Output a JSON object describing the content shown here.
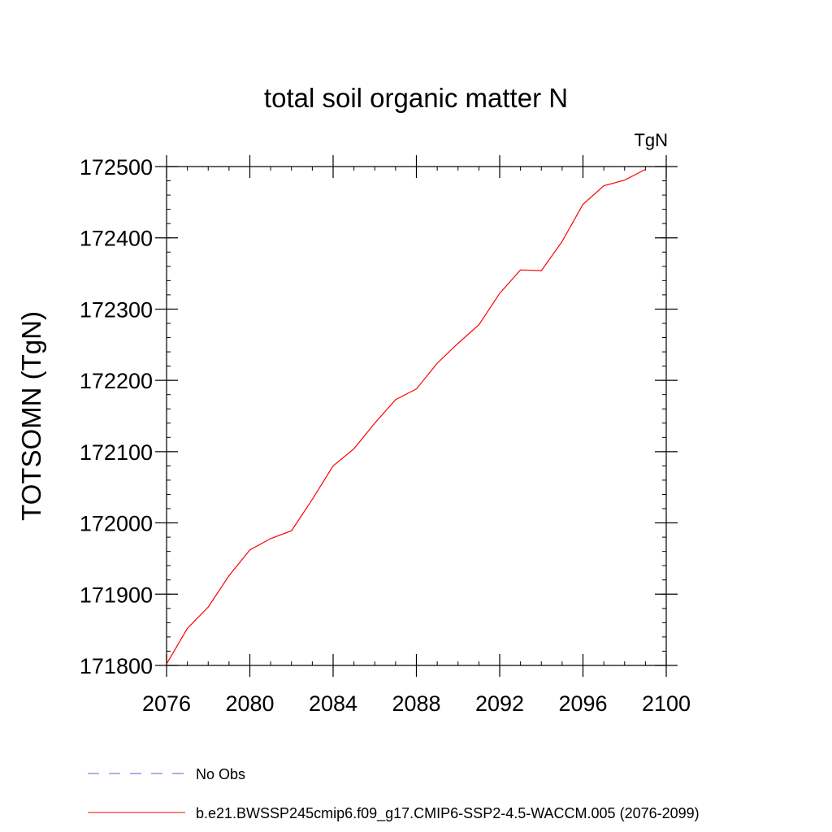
{
  "chart_data": {
    "type": "line",
    "title": "total soil organic matter N",
    "units_label": "TgN",
    "xlabel": "",
    "ylabel": "TOTSOMN  (TgN)",
    "xlim": [
      2076,
      2100
    ],
    "ylim": [
      171800,
      172500
    ],
    "x_ticks": [
      2076,
      2080,
      2084,
      2088,
      2092,
      2096,
      2100
    ],
    "y_ticks": [
      171800,
      171900,
      172000,
      172100,
      172200,
      172300,
      172400,
      172500
    ],
    "x_minor_step": 1,
    "y_minor_step": 20,
    "grid": false,
    "series": [
      {
        "name": "b.e21.BWSSP245cmip6.f09_g17.CMIP6-SSP2-4.5-WACCM.005 (2076-2099)",
        "color": "#ff0000",
        "dash": "solid",
        "x": [
          2076,
          2077,
          2078,
          2079,
          2080,
          2081,
          2082,
          2083,
          2084,
          2085,
          2086,
          2087,
          2088,
          2089,
          2090,
          2091,
          2092,
          2093,
          2094,
          2095,
          2096,
          2097,
          2098,
          2099
        ],
        "values": [
          171802,
          171852,
          171882,
          171926,
          171962,
          171978,
          171989,
          172033,
          172080,
          172104,
          172140,
          172173,
          172188,
          172224,
          172252,
          172278,
          172322,
          172355,
          172354,
          172395,
          172447,
          172473,
          172481,
          172496
        ]
      }
    ],
    "legend_position": "bottom",
    "legend": [
      {
        "label": "No Obs",
        "color": "#6a5acd",
        "dash": "dashed"
      },
      {
        "label": "b.e21.BWSSP245cmip6.f09_g17.CMIP6-SSP2-4.5-WACCM.005 (2076-2099)",
        "color": "#ff0000",
        "dash": "solid"
      }
    ]
  }
}
